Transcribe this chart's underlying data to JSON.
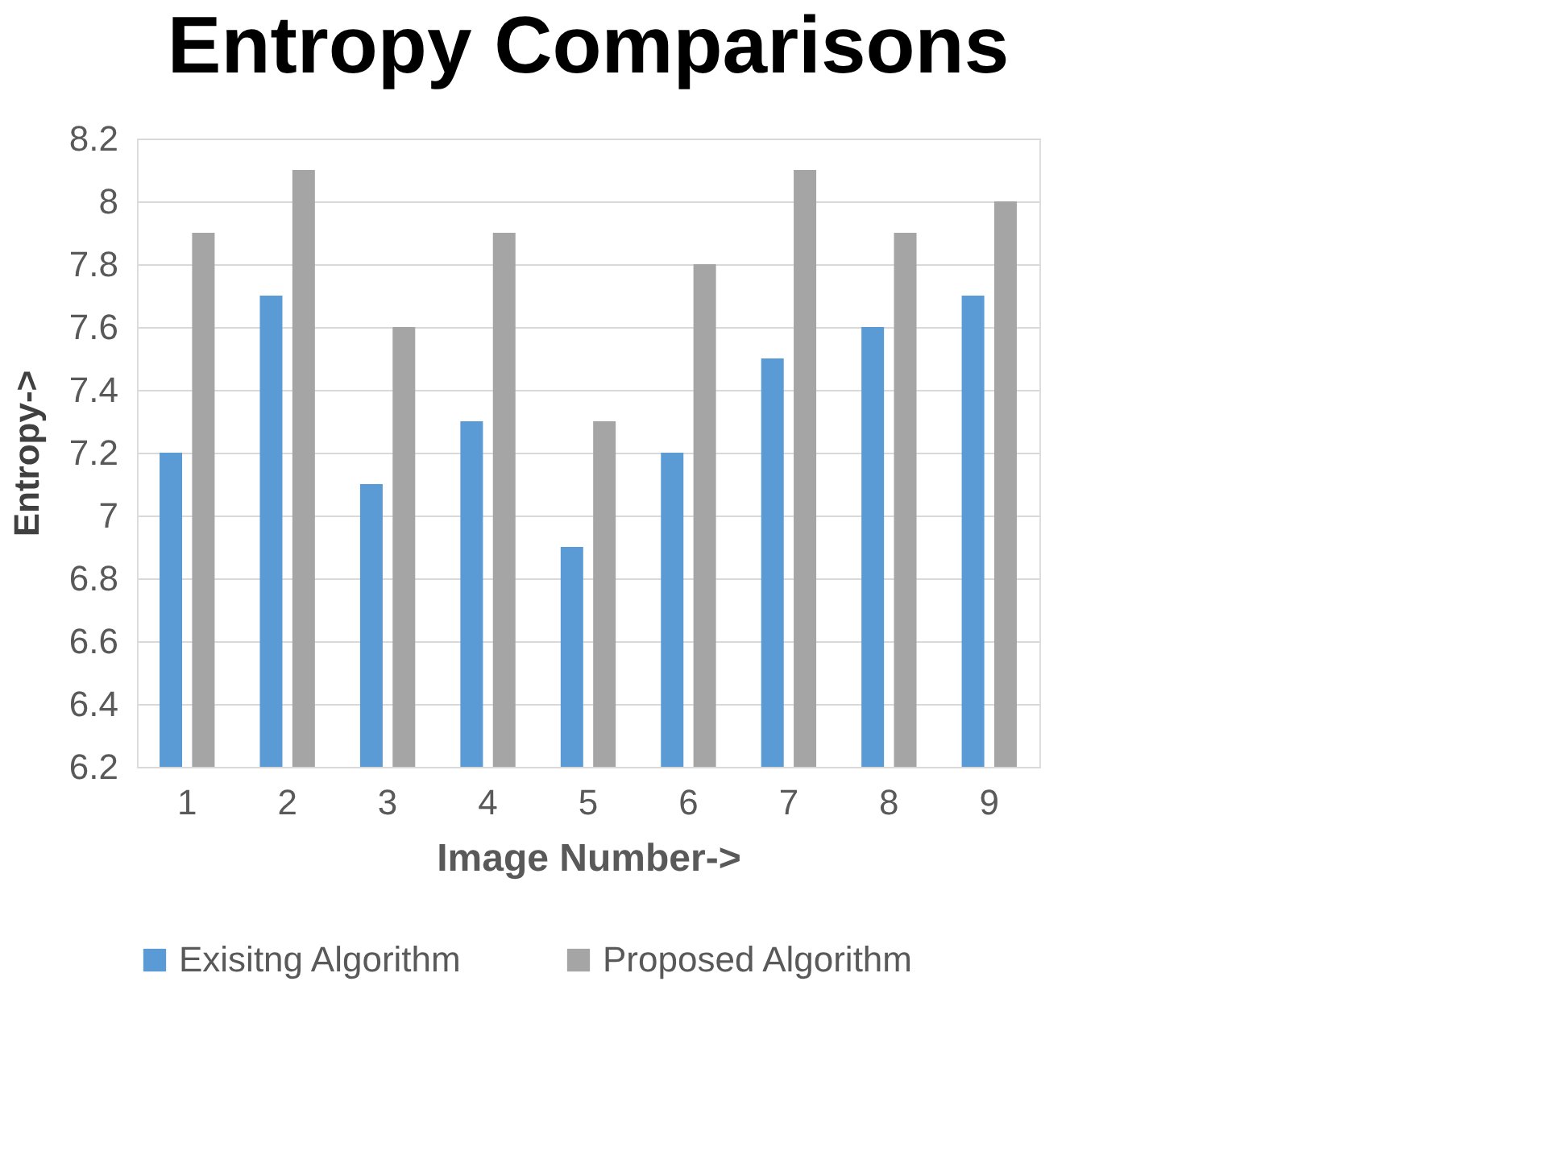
{
  "chart_data": {
    "type": "bar",
    "title": "Entropy Comparisons",
    "xlabel": "Image Number->",
    "ylabel": "Entropy->",
    "categories": [
      "1",
      "2",
      "3",
      "4",
      "5",
      "6",
      "7",
      "8",
      "9"
    ],
    "series": [
      {
        "name": "Exisitng Algorithm",
        "color": "#5b9bd5",
        "values": [
          7.2,
          7.7,
          7.1,
          7.3,
          6.9,
          7.2,
          7.5,
          7.6,
          7.7
        ]
      },
      {
        "name": "Proposed Algorithm",
        "color": "#a5a5a5",
        "values": [
          7.9,
          8.1,
          7.6,
          7.9,
          7.3,
          7.8,
          8.1,
          7.9,
          8.0
        ]
      }
    ],
    "ylim": [
      6.2,
      8.2
    ],
    "yticks": [
      6.2,
      6.4,
      6.6,
      6.8,
      7,
      7.2,
      7.4,
      7.6,
      7.8,
      8,
      8.2
    ],
    "grid": "y",
    "legend": "bottom"
  }
}
